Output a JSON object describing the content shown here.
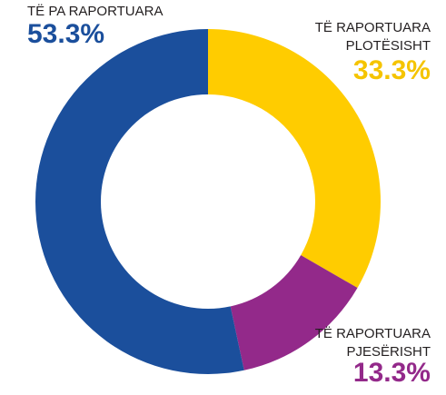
{
  "chart_data": {
    "type": "donut",
    "categories": [
      "TË RAPORTUARA\nPLOTËSISHT",
      "TË RAPORTUARA\nPJESËRISHT",
      "TË PA RAPORTUARA"
    ],
    "values": [
      33.3,
      13.3,
      53.3
    ],
    "value_labels": [
      "33.3%",
      "13.3%",
      "53.3%"
    ],
    "colors": [
      "#ffcc00",
      "#93298a",
      "#1b4f9c"
    ]
  }
}
